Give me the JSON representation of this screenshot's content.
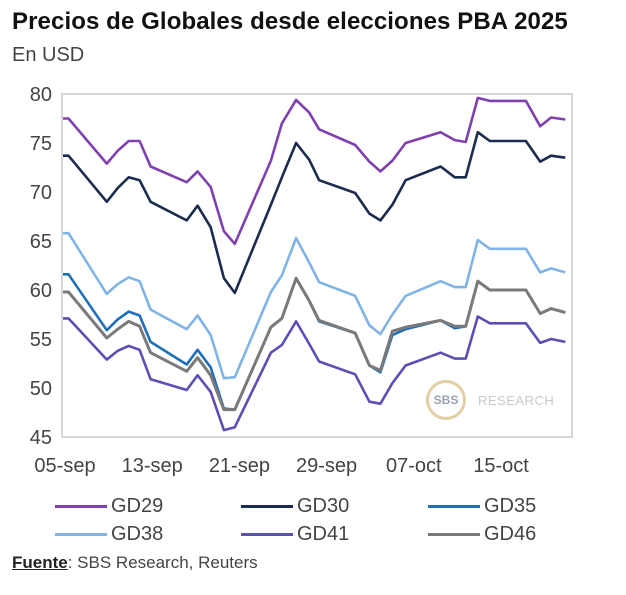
{
  "header": {
    "title": "Precios de Globales desde elecciones PBA 2025",
    "subtitle": "En USD"
  },
  "source": {
    "label": "Fuente",
    "text": ": SBS Research, Reuters"
  },
  "watermark": {
    "logo": "SBS",
    "text": "RESEARCH"
  },
  "chart_data": {
    "type": "line",
    "title": "Precios de Globales desde elecciones PBA 2025",
    "subtitle": "En USD",
    "xlabel": "",
    "ylabel": "",
    "ylim": [
      45,
      80
    ],
    "yticks": [
      80,
      75,
      70,
      65,
      60,
      55,
      50,
      45
    ],
    "xticks": [
      "05-sep",
      "13-sep",
      "21-sep",
      "29-sep",
      "07-oct",
      "15-oct"
    ],
    "xtick_days": [
      0,
      8,
      16,
      24,
      32,
      40
    ],
    "grid": false,
    "legend_position": "bottom",
    "x_days": [
      0,
      0.5,
      4,
      5,
      6,
      7,
      8,
      11.3,
      12.3,
      13.5,
      14.7,
      15.7,
      19,
      20,
      21.3,
      22.5,
      23.4,
      26.7,
      28,
      29,
      30.1,
      31.3,
      34.5,
      35.8,
      36.8,
      37.9,
      39,
      42.3,
      43.6,
      44.6,
      45.9
    ],
    "x": [
      "05-sep",
      "05-sep",
      "09-sep",
      "10-sep",
      "11-sep",
      "12-sep",
      "13-sep",
      "16-sep",
      "17-sep",
      "18-sep",
      "19-sep",
      "20-sep",
      "24-sep",
      "25-sep",
      "26-sep",
      "27-sep",
      "28-sep",
      "01-oct",
      "03-oct",
      "04-oct",
      "05-oct",
      "06-oct",
      "09-oct",
      "10-oct",
      "11-oct",
      "12-oct",
      "13-oct",
      "17-oct",
      "18-oct",
      "19-oct",
      "20-oct"
    ],
    "series": [
      {
        "name": "GD29",
        "color": "#8040b0",
        "values": [
          77.5,
          77.5,
          72.9,
          74.2,
          75.2,
          75.2,
          72.6,
          71.0,
          72.1,
          70.5,
          66.0,
          64.7,
          73.2,
          77.0,
          79.4,
          78.1,
          76.4,
          74.8,
          73.1,
          72.1,
          73.2,
          75.0,
          76.1,
          75.3,
          75.1,
          79.6,
          79.3,
          79.3,
          76.7,
          77.6,
          77.4
        ]
      },
      {
        "name": "GD30",
        "color": "#1c2b50",
        "values": [
          73.7,
          73.7,
          69.0,
          70.4,
          71.5,
          71.2,
          69.0,
          67.1,
          68.6,
          66.4,
          61.2,
          59.7,
          68.7,
          71.5,
          75.0,
          73.3,
          71.2,
          69.9,
          67.8,
          67.1,
          68.7,
          71.2,
          72.6,
          71.5,
          71.5,
          76.1,
          75.2,
          75.2,
          73.1,
          73.7,
          73.5
        ]
      },
      {
        "name": "GD35",
        "color": "#1f6fb8",
        "values": [
          61.6,
          61.6,
          55.9,
          57.0,
          57.8,
          57.4,
          54.7,
          52.4,
          53.9,
          52.1,
          47.9,
          47.8,
          56.2,
          57.1,
          61.2,
          58.9,
          56.8,
          55.6,
          52.3,
          51.6,
          55.4,
          56.0,
          56.9,
          56.1,
          56.3,
          60.9,
          60.0,
          60.0,
          57.6,
          58.1,
          57.7
        ]
      },
      {
        "name": "GD38",
        "color": "#80b4e6",
        "values": [
          65.8,
          65.8,
          59.6,
          60.6,
          61.3,
          60.9,
          58.0,
          56.0,
          57.4,
          55.4,
          51.0,
          51.1,
          59.8,
          61.5,
          65.3,
          62.8,
          60.8,
          59.4,
          56.4,
          55.5,
          57.5,
          59.4,
          60.9,
          60.3,
          60.3,
          65.1,
          64.2,
          64.2,
          61.8,
          62.2,
          61.8
        ]
      },
      {
        "name": "GD41",
        "color": "#5a50b4",
        "values": [
          57.1,
          57.1,
          52.9,
          53.8,
          54.3,
          53.9,
          50.9,
          49.8,
          51.3,
          49.6,
          45.7,
          46.0,
          53.6,
          54.4,
          56.8,
          54.5,
          52.7,
          51.4,
          48.6,
          48.4,
          50.5,
          52.3,
          53.6,
          53.0,
          53.0,
          57.3,
          56.6,
          56.6,
          54.6,
          55.0,
          54.7
        ]
      },
      {
        "name": "GD46",
        "color": "#7a7a7a",
        "values": [
          59.8,
          59.8,
          55.1,
          56.0,
          56.8,
          56.3,
          53.6,
          51.7,
          53.1,
          51.3,
          47.8,
          47.8,
          56.2,
          57.1,
          61.2,
          58.9,
          56.9,
          55.6,
          52.3,
          51.8,
          55.8,
          56.2,
          56.9,
          56.3,
          56.3,
          60.9,
          60.0,
          60.0,
          57.6,
          58.1,
          57.7
        ]
      }
    ]
  }
}
